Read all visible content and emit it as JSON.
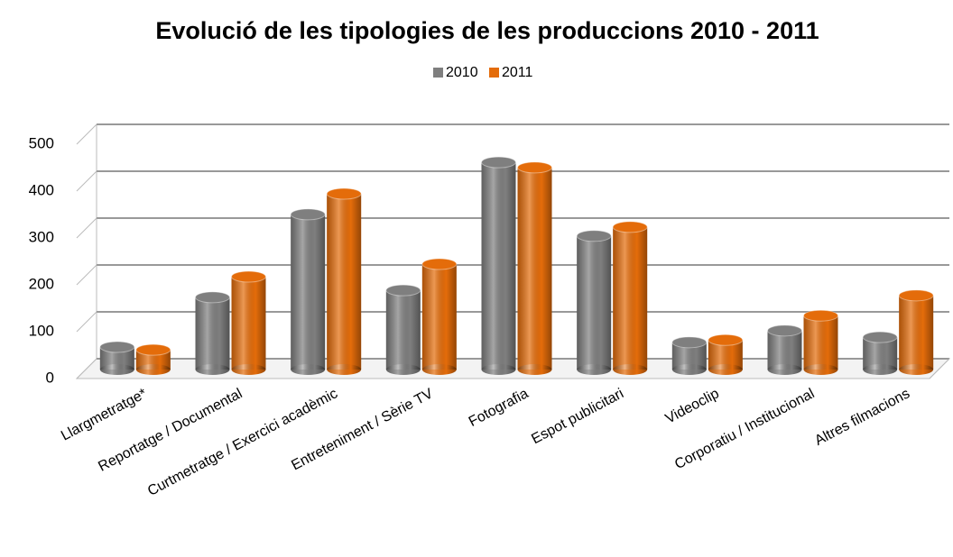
{
  "chart_data": {
    "type": "bar3d",
    "title": "Evolució de les tipologies de les produccions 2010 - 2011",
    "categories": [
      "Llargmetratge*",
      "Reportatge / Documental",
      "Curtmetratge / Exercici acadèmic",
      "Entreteniment / Sèrie TV",
      "Fotografia",
      "Espot publicitari",
      "Videoclip",
      "Corporatiu / Institucional",
      "Altres filmacions"
    ],
    "series": [
      {
        "name": "2010",
        "color": "#7f7f7f",
        "values": [
          48,
          154,
          331,
          169,
          442,
          285,
          58,
          83,
          69
        ]
      },
      {
        "name": "2011",
        "color": "#e46c0a",
        "values": [
          42,
          198,
          375,
          225,
          431,
          304,
          63,
          115,
          158
        ]
      }
    ],
    "ylim": [
      0,
      500
    ],
    "yticks": [
      0,
      100,
      200,
      300,
      400,
      500
    ],
    "grid": true,
    "legend": "top"
  }
}
